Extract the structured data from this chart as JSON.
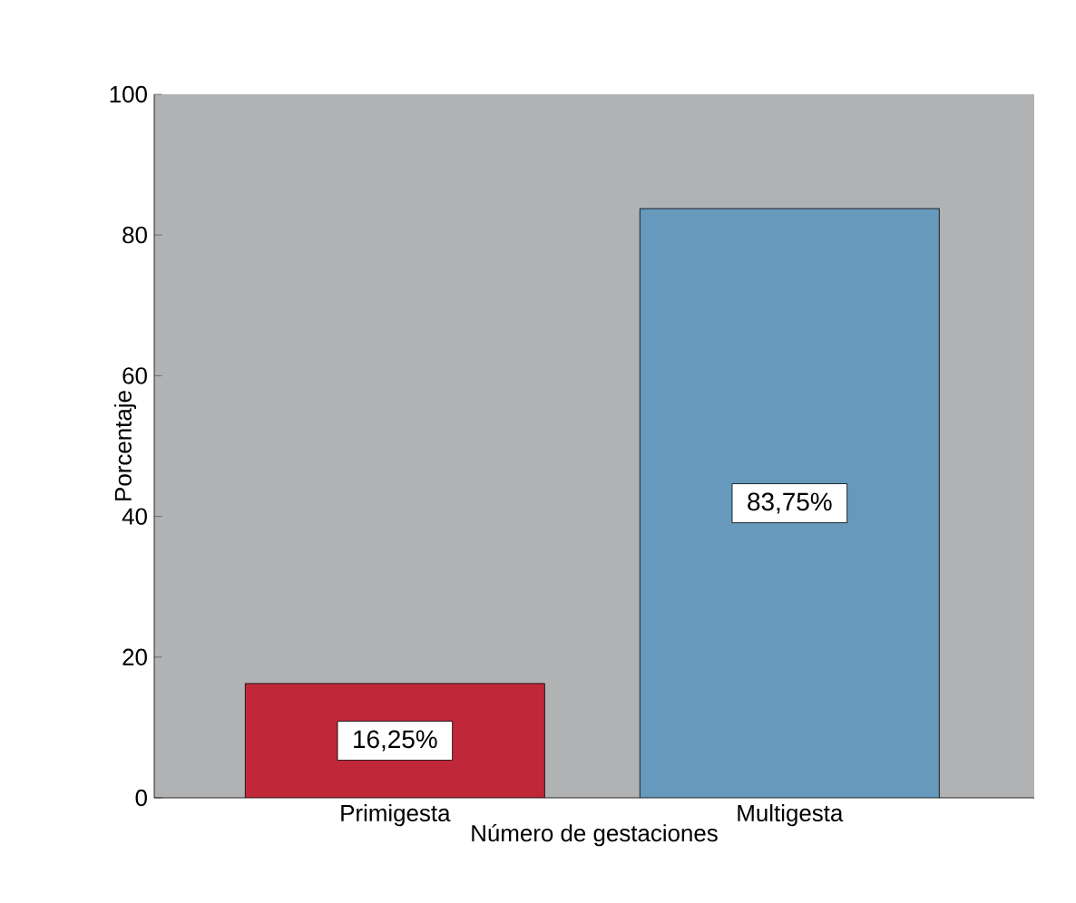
{
  "chart_data": {
    "type": "bar",
    "categories": [
      "Primigesta",
      "Multigesta"
    ],
    "values": [
      16.25,
      83.75
    ],
    "colors": [
      "#c0283a",
      "#6699bb"
    ],
    "value_labels": [
      "16,25%",
      "83,75%"
    ],
    "xlabel": "Número de gestaciones",
    "ylabel": "Porcentaje",
    "ylim": [
      0,
      100
    ],
    "yticks": [
      0,
      20,
      40,
      60,
      80,
      100
    ]
  }
}
